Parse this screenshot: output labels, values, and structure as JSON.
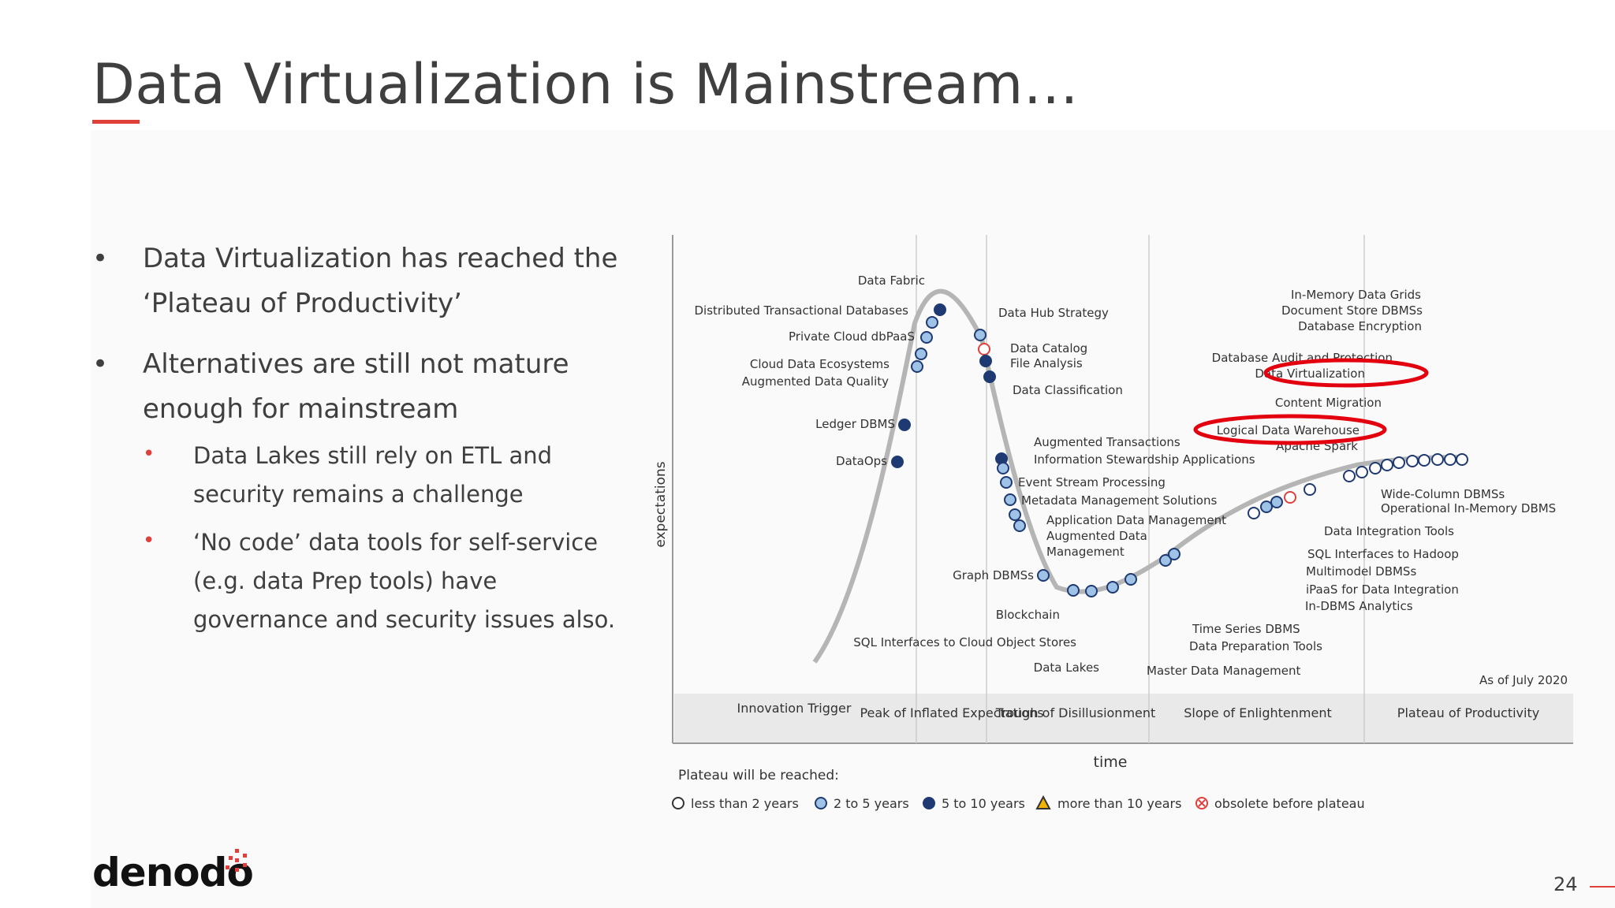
{
  "slide": {
    "title": "Data Virtualization is Mainstream…",
    "page_number": "24",
    "bullet_glyph": "•"
  },
  "bullets": [
    {
      "text": "Data Virtualization has reached the ‘Plateau of Productivity’"
    },
    {
      "text": "Alternatives are still not mature enough for mainstream"
    }
  ],
  "sub_bullets": [
    {
      "text": "Data Lakes still rely on ETL and security remains a challenge"
    },
    {
      "text": "‘No code’ data tools for self-service (e.g. data Prep tools) have governance and security issues also."
    }
  ],
  "logo": {
    "text": "denodo",
    "accent_color": "#e0403a"
  },
  "hype_cycle": {
    "y_axis_label": "expectations",
    "x_axis_label": "time",
    "as_of": "As of July 2020",
    "phases": [
      {
        "label": "Innovation Trigger"
      },
      {
        "label": "Peak of Inflated Expectations"
      },
      {
        "label": "Trough of Disillusionment"
      },
      {
        "label": "Slope of Enlightenment"
      },
      {
        "label": "Plateau of Productivity"
      }
    ],
    "legend_title": "Plateau will be reached:",
    "legend": [
      {
        "label": "less than 2 years",
        "color": "#ffffff"
      },
      {
        "label": "2 to 5 years",
        "color": "#9ec3e6"
      },
      {
        "label": "5 to 10 years",
        "color": "#1f3a73"
      },
      {
        "label": "more than 10 years",
        "color": "#f0b400"
      },
      {
        "label": "obsolete before plateau",
        "color": "#e0403a"
      }
    ],
    "highlight_color": "#e3000f",
    "labels": {
      "data_fabric": "Data Fabric",
      "distributed_tx": "Distributed Transactional Databases",
      "private_cloud": "Private Cloud dbPaaS",
      "cloud_eco": "Cloud Data Ecosystems",
      "aug_quality": "Augmented Data Quality",
      "ledger": "Ledger DBMS",
      "dataops": "DataOps",
      "hub": "Data Hub Strategy",
      "catalog": "Data Catalog",
      "file_analysis": "File Analysis",
      "classification": "Data Classification",
      "aug_tx": "Augmented Transactions",
      "info_stewardship": "Information Stewardship Applications",
      "event_stream": "Event Stream Processing",
      "metadata": "Metadata Management Solutions",
      "app_data_mgmt": "Application Data Management",
      "aug_data_mgmt_1": "Augmented Data",
      "aug_data_mgmt_2": "Management",
      "graph": "Graph DBMSs",
      "blockchain": "Blockchain",
      "sql_cloud": "SQL Interfaces to Cloud Object Stores",
      "data_lakes": "Data Lakes",
      "master_data": "Master Data Management",
      "time_series": "Time Series DBMS",
      "data_prep": "Data Preparation Tools",
      "in_memory_grids": "In-Memory Data Grids",
      "doc_store": "Document Store DBMSs",
      "db_encryption": "Database Encryption",
      "db_audit": "Database Audit and Protection",
      "data_virtualization": "Data Virtualization",
      "content_migration": "Content Migration",
      "logical_dw": "Logical Data Warehouse",
      "apache_spark": "Apache Spark",
      "wide_column": "Wide-Column DBMSs",
      "op_in_memory": "Operational In-Memory DBMS",
      "integration_tools": "Data Integration Tools",
      "sql_hadoop": "SQL Interfaces to Hadoop",
      "multimodel": "Multimodel DBMSs",
      "ipaas": "iPaaS for Data Integration",
      "in_dbms": "In-DBMS Analytics"
    }
  }
}
